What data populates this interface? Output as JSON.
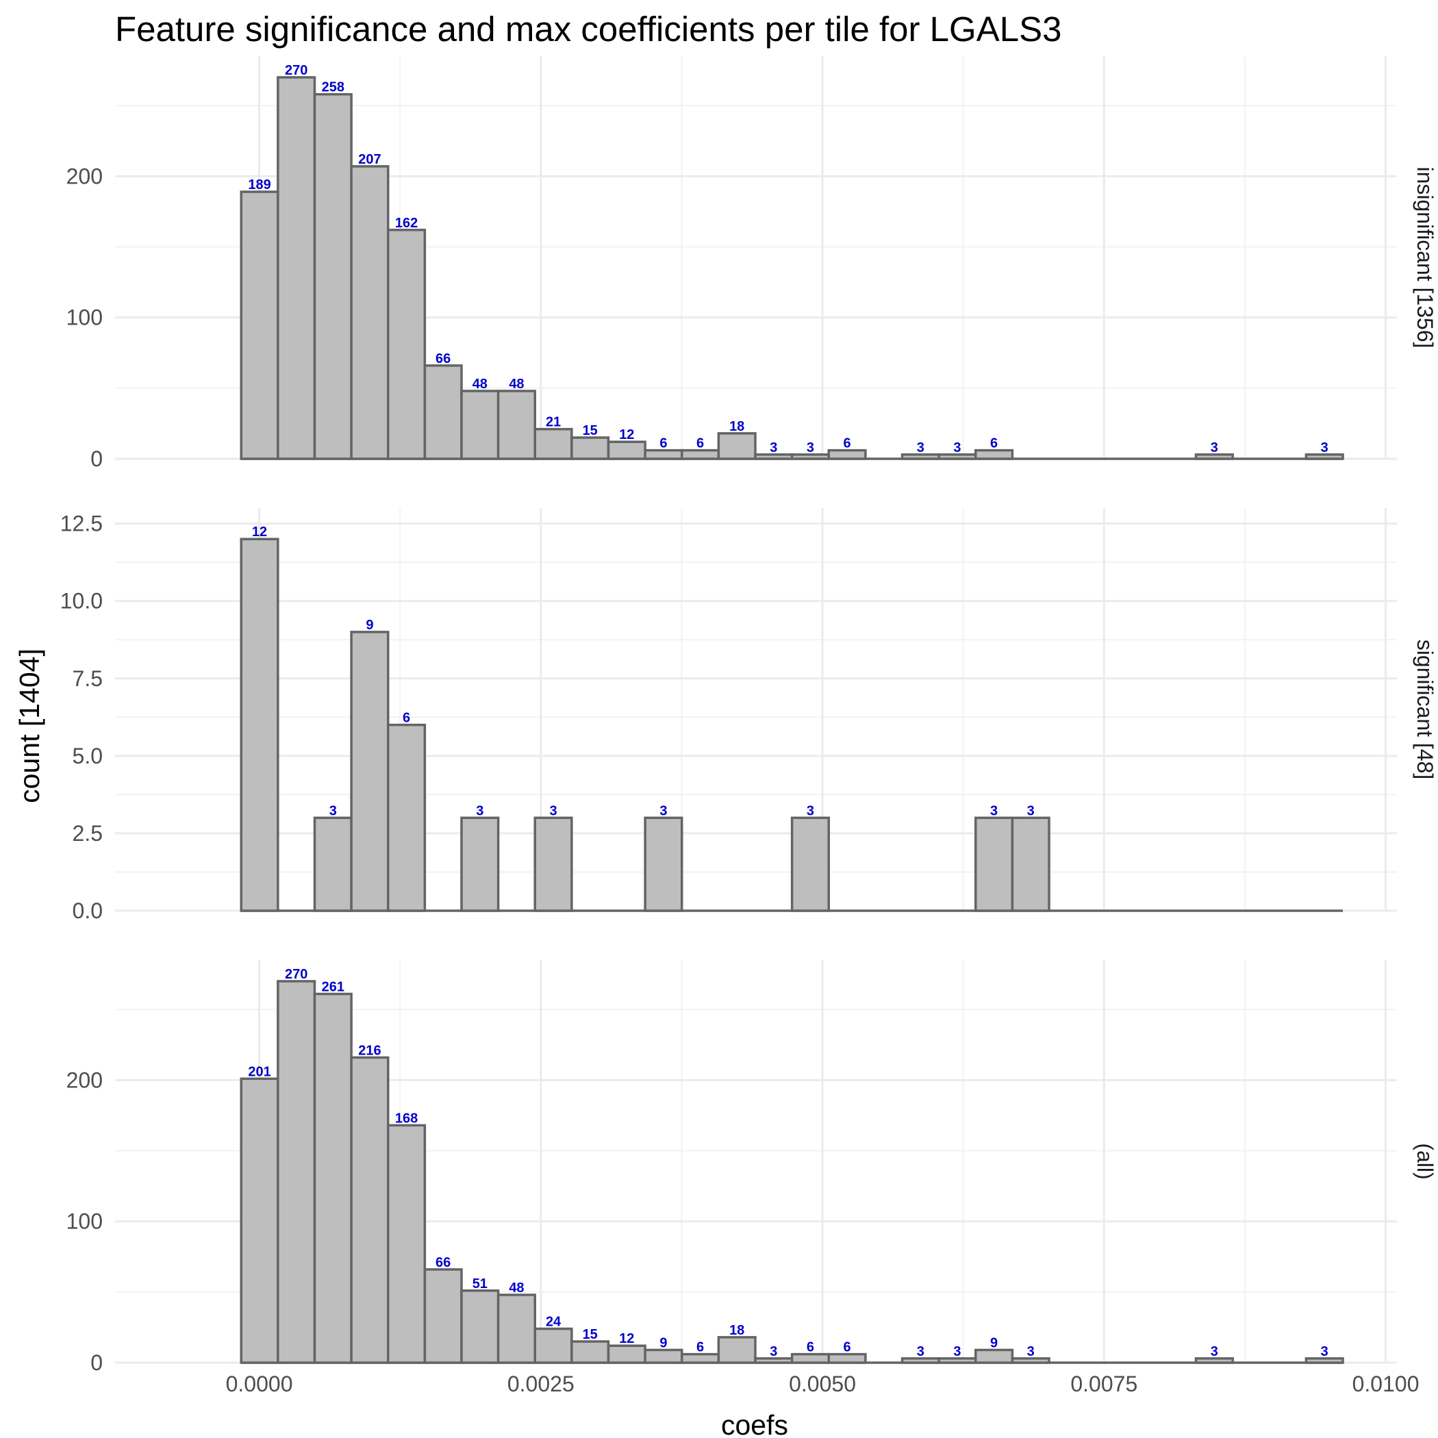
{
  "chart_data": {
    "type": "bar",
    "title": "Feature significance and max coefficients per tile for LGALS3",
    "xlabel": "coefs",
    "ylabel": "count [1404]",
    "x_ticks": [
      "0.0000",
      "0.0025",
      "0.0050",
      "0.0075",
      "0.0100"
    ],
    "xlim": [
      -0.00128,
      0.0101
    ],
    "bin_start": -0.00016,
    "bin_width": 0.000326,
    "grid": true,
    "bar_fill": "#bebebe",
    "bar_outline": "#646464",
    "label_color": "#0000cc",
    "panels": [
      {
        "name": "insignificant [1356]",
        "ylim": [
          0,
          285
        ],
        "y_ticks": [
          "0",
          "100",
          "200"
        ],
        "y_tick_values": [
          0,
          100,
          200
        ],
        "counts": [
          189,
          270,
          258,
          207,
          162,
          66,
          48,
          48,
          21,
          15,
          12,
          6,
          6,
          18,
          3,
          3,
          6,
          0,
          3,
          3,
          6,
          0,
          0,
          0,
          0,
          0,
          3,
          0,
          0,
          3
        ]
      },
      {
        "name": "significant [48]",
        "ylim": [
          0,
          13
        ],
        "y_ticks": [
          "0.0",
          "2.5",
          "5.0",
          "7.5",
          "10.0",
          "12.5"
        ],
        "y_tick_values": [
          0,
          2.5,
          5,
          7.5,
          10,
          12.5
        ],
        "counts": [
          12,
          0,
          3,
          9,
          6,
          0,
          3,
          0,
          3,
          0,
          0,
          3,
          0,
          0,
          0,
          3,
          0,
          0,
          0,
          0,
          3,
          3,
          0,
          0,
          0,
          0,
          0,
          0,
          0,
          0
        ]
      },
      {
        "name": "(all)",
        "ylim": [
          0,
          285
        ],
        "y_ticks": [
          "0",
          "100",
          "200"
        ],
        "y_tick_values": [
          0,
          100,
          200
        ],
        "counts": [
          201,
          270,
          261,
          216,
          168,
          66,
          51,
          48,
          24,
          15,
          12,
          9,
          6,
          18,
          3,
          6,
          6,
          0,
          3,
          3,
          9,
          3,
          0,
          0,
          0,
          0,
          3,
          0,
          0,
          3
        ]
      }
    ]
  }
}
